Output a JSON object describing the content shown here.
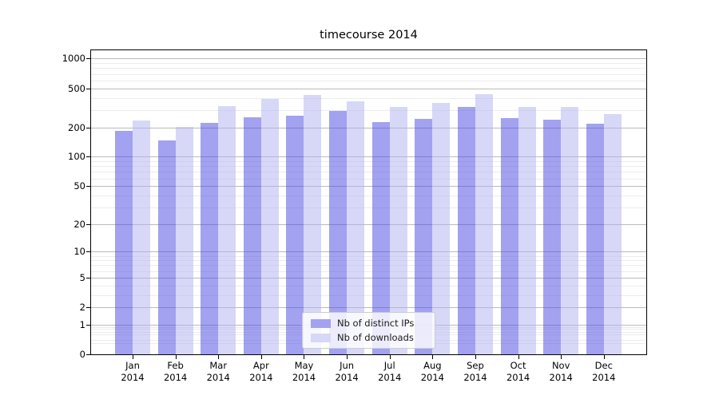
{
  "chart_data": {
    "type": "bar",
    "title": "timecourse 2014",
    "categories": [
      "Jan 2014",
      "Feb 2014",
      "Mar 2014",
      "Apr 2014",
      "May 2014",
      "Jun 2014",
      "Jul 2014",
      "Aug 2014",
      "Sep 2014",
      "Oct 2014",
      "Nov 2014",
      "Dec 2014"
    ],
    "series": [
      {
        "name": "Nb of distinct IPs",
        "values": [
          184,
          148,
          224,
          253,
          261,
          293,
          228,
          244,
          321,
          249,
          240,
          216
        ],
        "color_fill": "rgba(70,70,225,0.5)",
        "color_legend": "#a2a2f0"
      },
      {
        "name": "Nb of downloads",
        "values": [
          235,
          201,
          328,
          388,
          427,
          371,
          322,
          352,
          432,
          324,
          325,
          271
        ],
        "color_fill": "rgba(175,175,240,0.5)",
        "color_legend": "#d7d7f7"
      }
    ],
    "yscale": "symlog (log10 of 1+value)",
    "yticks": [
      1000,
      500,
      200,
      100,
      50,
      20,
      10,
      5,
      2,
      1,
      0
    ],
    "minor_gridlines": [
      0.3,
      0.4,
      0.6,
      0.7,
      0.8,
      0.9,
      3,
      4,
      6,
      7,
      8,
      9,
      30,
      40,
      60,
      70,
      80,
      90,
      300,
      400,
      600,
      700,
      800,
      900
    ],
    "ylim": [
      0,
      1240
    ],
    "grid": true,
    "legend_position": "lower center"
  },
  "legend": {
    "items": [
      {
        "label": "Nb of distinct IPs"
      },
      {
        "label": "Nb of downloads"
      }
    ]
  },
  "colors": {
    "grid_major": "#bbbbbb",
    "grid_minor": "#ececec",
    "spine": "#000000",
    "background": "#ffffff"
  }
}
